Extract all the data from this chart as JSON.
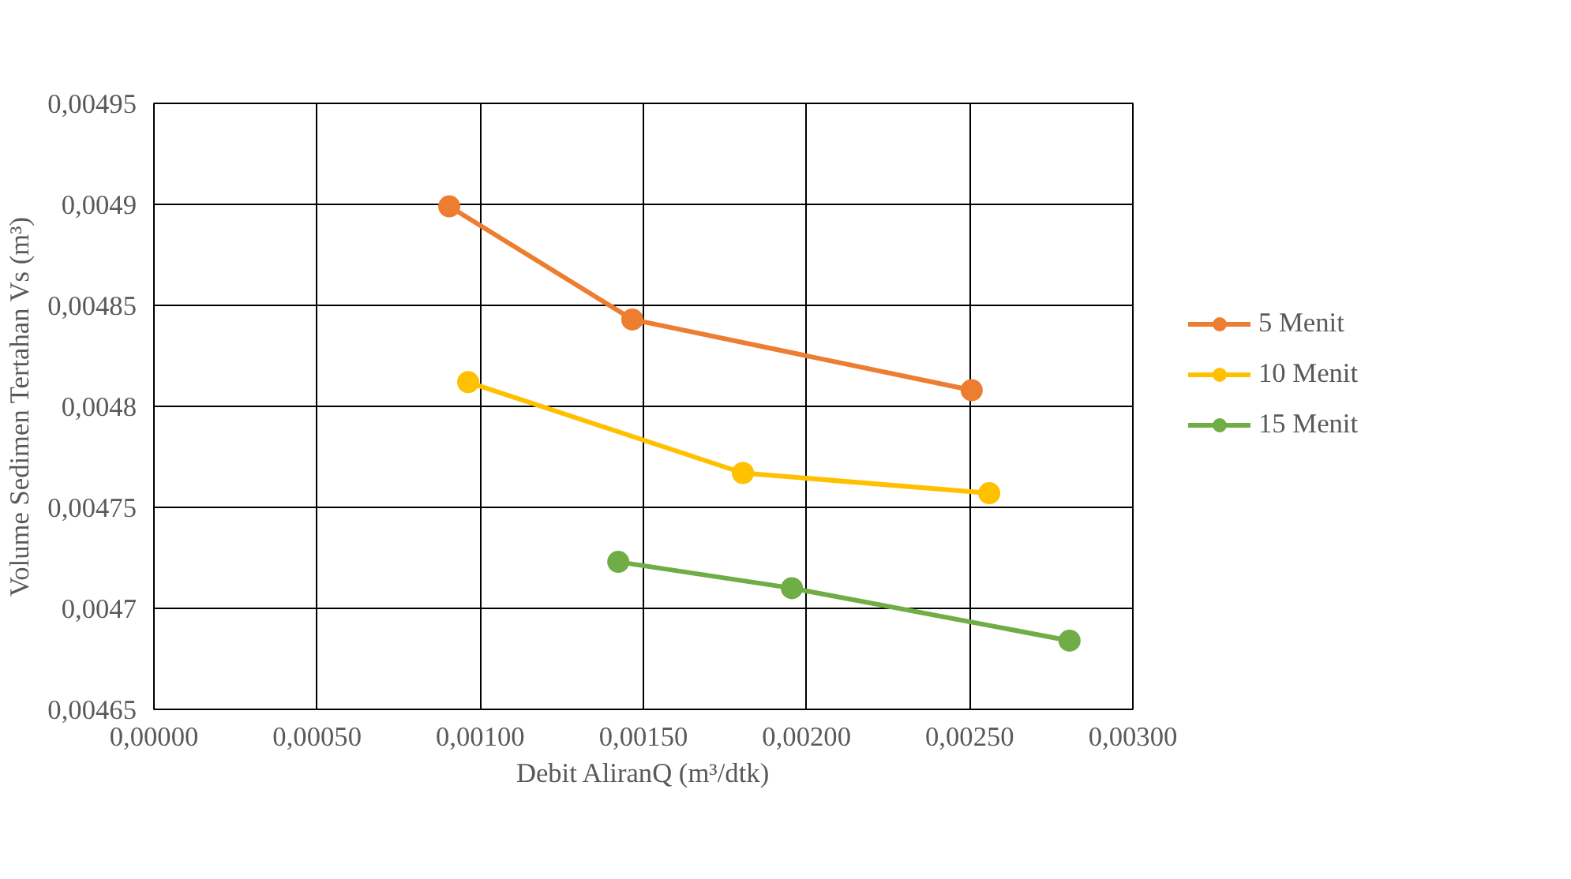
{
  "chart_data": {
    "type": "line",
    "xlabel": "Debit AliranQ (m³/dtk)",
    "ylabel": "Volume Sedimen Tertahan Vs (m³)",
    "xlim": [
      0,
      0.003
    ],
    "ylim": [
      0.00465,
      0.00495
    ],
    "xticks": [
      {
        "value": 0,
        "label": "0,00000"
      },
      {
        "value": 0.0005,
        "label": "0,00050"
      },
      {
        "value": 0.001,
        "label": "0,00100"
      },
      {
        "value": 0.0015,
        "label": "0,00150"
      },
      {
        "value": 0.002,
        "label": "0,00200"
      },
      {
        "value": 0.0025,
        "label": "0,00250"
      },
      {
        "value": 0.003,
        "label": "0,00300"
      }
    ],
    "yticks": [
      {
        "value": 0.00465,
        "label": "0,00465"
      },
      {
        "value": 0.0047,
        "label": "0,0047"
      },
      {
        "value": 0.00475,
        "label": "0,00475"
      },
      {
        "value": 0.0048,
        "label": "0,0048"
      },
      {
        "value": 0.00485,
        "label": "0,00485"
      },
      {
        "value": 0.0049,
        "label": "0,0049"
      },
      {
        "value": 0.00495,
        "label": "0,00495"
      }
    ],
    "grid": true,
    "legend": "right",
    "marker": "circle",
    "line_style": "solid",
    "series": [
      {
        "name": "5 Menit",
        "color": "#ed7d31",
        "x": [
          0.000905,
          0.001466,
          0.002506
        ],
        "values": [
          0.004899,
          0.004843,
          0.004808
        ]
      },
      {
        "name": "10 Menit",
        "color": "#ffc000",
        "x": [
          0.000963,
          0.001805,
          0.00256
        ],
        "values": [
          0.004812,
          0.004767,
          0.004757
        ]
      },
      {
        "name": "15 Menit",
        "color": "#70ad47",
        "x": [
          0.001423,
          0.001955,
          0.002806
        ],
        "values": [
          0.004723,
          0.00471,
          0.004684
        ]
      }
    ]
  }
}
